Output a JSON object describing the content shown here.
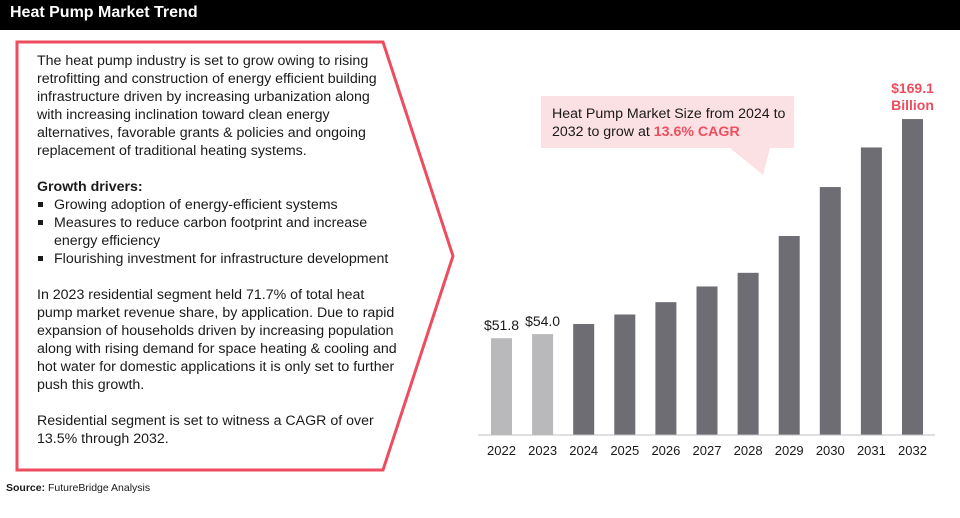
{
  "header": {
    "title": "Heat Pump Market Trend"
  },
  "left_panel": {
    "intro": "The heat pump industry is set to grow owing to rising retrofitting and construction of energy efficient building infrastructure driven by increasing urbanization along with increasing inclination toward clean energy alternatives, favorable grants & policies and ongoing replacement of traditional heating systems.",
    "drivers_heading": "Growth drivers:",
    "drivers": [
      "Growing adoption of energy-efficient systems",
      "Measures to reduce carbon footprint and increase energy efficiency",
      "Flourishing investment for infrastructure development"
    ],
    "residential_share": "In 2023 residential segment held 71.7% of total heat pump market revenue share, by application. Due to rapid expansion of households driven by increasing population along with rising demand for space heating & cooling and hot water for domestic applications it is only set to further push this growth.",
    "residential_cagr": "Residential segment is set to witness a CAGR of over 13.5% through 2032."
  },
  "callout": {
    "text": "Heat Pump Market Size from 2024 to 2032 to grow at ",
    "highlight": "13.6% CAGR"
  },
  "source": {
    "label": "Source:",
    "text": " FutureBridge Analysis"
  },
  "colors": {
    "actual": "#b9b9bc",
    "forecast": "#6e6d74",
    "accent": "#ee4d5f",
    "callout_bg": "#fce1e4"
  },
  "chart_data": {
    "type": "bar",
    "categories": [
      "2022",
      "2023",
      "2024",
      "2025",
      "2026",
      "2027",
      "2028",
      "2029",
      "2030",
      "2031",
      "2032"
    ],
    "values": [
      51.8,
      54.0,
      59.4,
      64.5,
      71.1,
      79.5,
      86.8,
      106.5,
      132.7,
      153.9,
      169.1
    ],
    "data_labels": [
      "$51.8",
      "$54.0",
      "",
      "",
      "",
      "",
      "",
      "",
      "",
      "",
      "$169.1 Billion"
    ],
    "actual_years": [
      "2022",
      "2023"
    ],
    "ylim": [
      0,
      190
    ],
    "grid": false,
    "xlabel": "",
    "ylabel": ""
  }
}
